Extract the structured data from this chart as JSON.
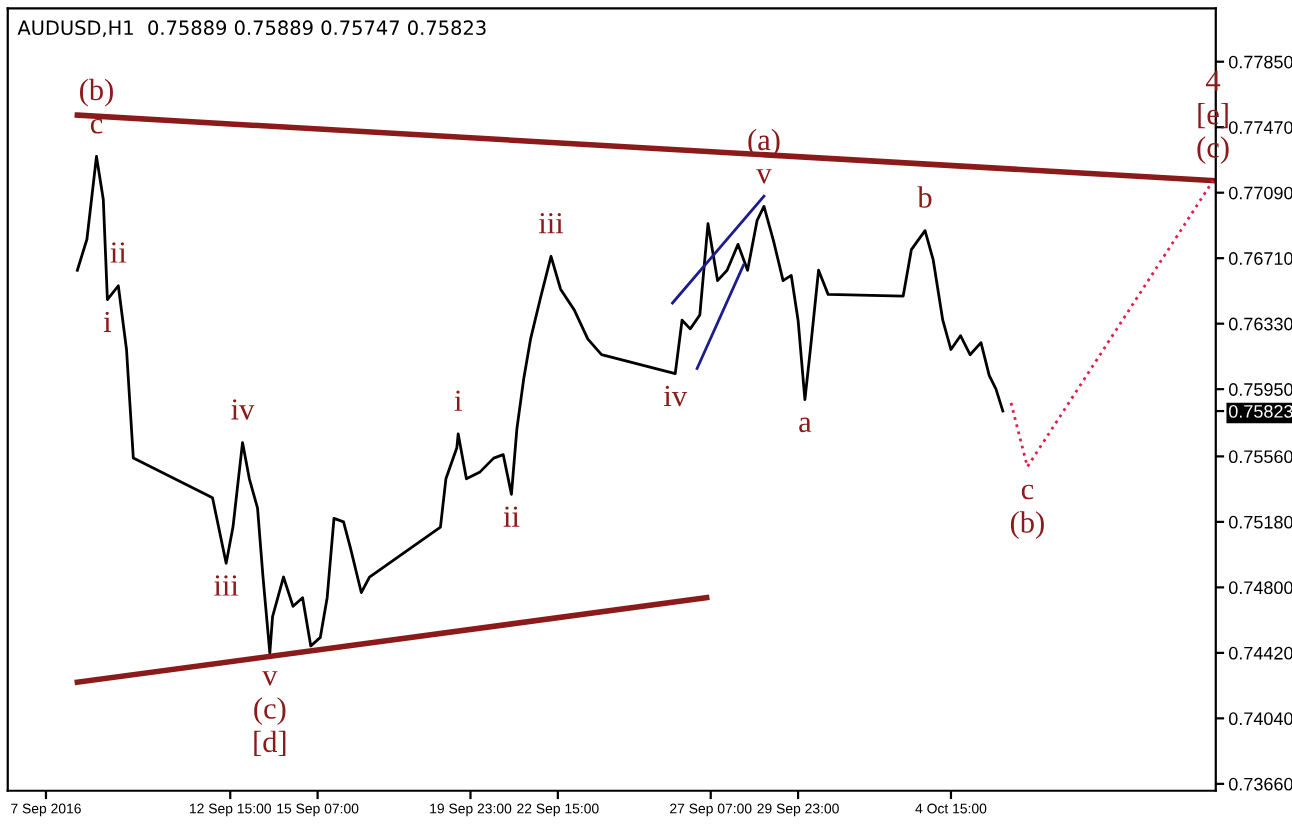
{
  "chart_data": {
    "type": "line",
    "title": "AUDUSD,H1  0.75889 0.75889 0.75747 0.75823",
    "xlim": [
      "2016-09-05T20:00",
      "2016-10-12T17:00"
    ],
    "ylim": [
      0.7362,
      0.7816
    ],
    "xticks": [
      {
        "value": "2016-09-07T00:00",
        "label": "7 Sep 2016"
      },
      {
        "value": "2016-09-12T15:00",
        "label": "12 Sep 15:00"
      },
      {
        "value": "2016-09-15T07:00",
        "label": "15 Sep 07:00"
      },
      {
        "value": "2016-09-19T23:00",
        "label": "19 Sep 23:00"
      },
      {
        "value": "2016-09-22T15:00",
        "label": "22 Sep 15:00"
      },
      {
        "value": "2016-09-27T07:00",
        "label": "27 Sep 07:00"
      },
      {
        "value": "2016-09-29T23:00",
        "label": "29 Sep 23:00"
      },
      {
        "value": "2016-10-04T15:00",
        "label": "4 Oct 15:00"
      }
    ],
    "yticks": [
      {
        "value": 0.7785,
        "label": "0.77850"
      },
      {
        "value": 0.7747,
        "label": "0.77470"
      },
      {
        "value": 0.7709,
        "label": "0.77090"
      },
      {
        "value": 0.7671,
        "label": "0.76710"
      },
      {
        "value": 0.7633,
        "label": "0.76330"
      },
      {
        "value": 0.7595,
        "label": "0.75950"
      },
      {
        "value": 0.75823,
        "label": "0.75823"
      },
      {
        "value": 0.7556,
        "label": "0.75560"
      },
      {
        "value": 0.7518,
        "label": "0.75180"
      },
      {
        "value": 0.748,
        "label": "0.74800"
      },
      {
        "value": 0.7442,
        "label": "0.74420"
      },
      {
        "value": 0.7404,
        "label": "0.74040"
      },
      {
        "value": 0.7366,
        "label": "0.73660"
      }
    ],
    "grid": false,
    "series": [
      {
        "color": "#000000",
        "x": [
          "2016-09-07T23:00",
          "2016-09-08T06:00",
          "2016-09-08T13:00",
          "2016-09-08T18:00",
          "2016-09-08T21:00",
          "2016-09-09T05:00",
          "2016-09-09T11:00",
          "2016-09-09T16:00",
          "2016-09-12T02:00",
          "2016-09-12T12:00",
          "2016-09-12T17:00",
          "2016-09-13T00:00",
          "2016-09-13T05:00",
          "2016-09-13T11:00",
          "2016-09-13T15:00",
          "2016-09-13T20:00",
          "2016-09-13T22:00",
          "2016-09-14T06:00",
          "2016-09-14T13:00",
          "2016-09-14T20:00",
          "2016-09-15T02:00",
          "2016-09-15T09:00",
          "2016-09-15T14:00",
          "2016-09-15T19:00",
          "2016-09-16T02:00",
          "2016-09-16T07:00",
          "2016-09-16T15:00",
          "2016-09-16T21:00",
          "2016-09-19T01:00",
          "2016-09-19T05:00",
          "2016-09-19T13:00",
          "2016-09-19T14:00",
          "2016-09-19T20:00",
          "2016-09-20T06:00",
          "2016-09-20T16:00",
          "2016-09-20T23:00",
          "2016-09-21T05:00",
          "2016-09-21T09:00",
          "2016-09-21T14:00",
          "2016-09-21T19:00",
          "2016-09-22T02:00",
          "2016-09-22T10:00",
          "2016-09-22T17:00",
          "2016-09-23T03:00",
          "2016-09-23T13:00",
          "2016-09-23T23:00",
          "2016-09-26T05:00",
          "2016-09-26T10:00",
          "2016-09-26T16:00",
          "2016-09-26T23:00",
          "2016-09-27T05:00",
          "2016-09-27T12:00",
          "2016-09-27T19:00",
          "2016-09-28T03:00",
          "2016-09-28T10:00",
          "2016-09-28T17:00",
          "2016-09-28T22:00",
          "2016-09-29T05:00",
          "2016-09-29T12:00",
          "2016-09-29T18:00",
          "2016-09-29T23:00",
          "2016-09-30T04:00",
          "2016-09-30T08:00",
          "2016-09-30T14:00",
          "2016-09-30T21:00",
          "2016-10-03T04:00",
          "2016-10-03T10:00",
          "2016-10-03T20:00",
          "2016-10-04T02:00",
          "2016-10-04T09:00",
          "2016-10-04T15:00",
          "2016-10-04T22:00",
          "2016-10-05T05:00",
          "2016-10-05T13:00",
          "2016-10-05T19:00",
          "2016-10-06T00:00",
          "2016-10-06T05:00"
        ],
        "values": [
          0.7664,
          0.7682,
          0.773,
          0.7705,
          0.7647,
          0.7655,
          0.7618,
          0.7555,
          0.7532,
          0.7494,
          0.7515,
          0.7564,
          0.7543,
          0.7526,
          0.7486,
          0.7442,
          0.7463,
          0.7486,
          0.7469,
          0.7474,
          0.7446,
          0.7451,
          0.7474,
          0.752,
          0.7518,
          0.7503,
          0.7477,
          0.7486,
          0.7515,
          0.7543,
          0.7561,
          0.7569,
          0.7543,
          0.7547,
          0.7555,
          0.7557,
          0.7534,
          0.7572,
          0.7601,
          0.7624,
          0.7647,
          0.7672,
          0.7653,
          0.7641,
          0.7624,
          0.7615,
          0.7604,
          0.7635,
          0.763,
          0.7638,
          0.7691,
          0.7658,
          0.7664,
          0.7679,
          0.7664,
          0.7693,
          0.7701,
          0.7681,
          0.7658,
          0.7661,
          0.7635,
          0.7589,
          0.7618,
          0.7664,
          0.765,
          0.7649,
          0.7676,
          0.7687,
          0.767,
          0.7635,
          0.7618,
          0.7626,
          0.7615,
          0.7622,
          0.7603,
          0.7595,
          0.75823
        ]
      },
      {
        "color": "#8b1a1a",
        "x": [
          "2016-09-07T23:00",
          "2016-10-12T15:00"
        ],
        "values": [
          0.7754,
          0.7716
        ]
      },
      {
        "color": "#8b1a1a",
        "x": [
          "2016-09-07T23:00",
          "2016-09-27T04:00"
        ],
        "values": [
          0.7425,
          0.7474
        ]
      },
      {
        "color": "#1c1c8c",
        "x": [
          "2016-09-26T03:00",
          "2016-09-28T22:00"
        ],
        "values": [
          0.7645,
          0.7707
        ]
      },
      {
        "color": "#1c1c8c",
        "x": [
          "2016-09-26T21:00",
          "2016-09-28T07:00"
        ],
        "values": [
          0.7607,
          0.7667
        ]
      },
      {
        "color": "#e0204a",
        "line_style": "dotted",
        "x": [
          "2016-10-06T11:00",
          "2016-10-06T23:00",
          "2016-10-12T15:00"
        ],
        "values": [
          0.7587,
          0.755,
          0.7716
        ]
      }
    ],
    "annotations": [
      {
        "text": "c",
        "x": "2016-09-08T13:00",
        "y": 0.773
      },
      {
        "text": "(b)",
        "x": "2016-09-08T13:00",
        "y": 0.773
      },
      {
        "text": "ii",
        "x": "2016-09-09T05:00",
        "y": 0.7655
      },
      {
        "text": "i",
        "x": "2016-09-08T21:00",
        "y": 0.7647
      },
      {
        "text": "iv",
        "x": "2016-09-13T00:00",
        "y": 0.7564
      },
      {
        "text": "iii",
        "x": "2016-09-12T12:00",
        "y": 0.7494
      },
      {
        "text": "v",
        "x": "2016-09-13T20:00",
        "y": 0.7442
      },
      {
        "text": "(c)",
        "x": "2016-09-13T20:00",
        "y": 0.7442
      },
      {
        "text": "[d]",
        "x": "2016-09-13T20:00",
        "y": 0.7442
      },
      {
        "text": "i",
        "x": "2016-09-19T14:00",
        "y": 0.7569
      },
      {
        "text": "ii",
        "x": "2016-09-21T05:00",
        "y": 0.7534
      },
      {
        "text": "iii",
        "x": "2016-09-22T10:00",
        "y": 0.7672
      },
      {
        "text": "iv",
        "x": "2016-09-26T05:00",
        "y": 0.7604
      },
      {
        "text": "v",
        "x": "2016-09-28T22:00",
        "y": 0.7701
      },
      {
        "text": "(a)",
        "x": "2016-09-28T22:00",
        "y": 0.7701
      },
      {
        "text": "a",
        "x": "2016-09-30T04:00",
        "y": 0.7589
      },
      {
        "text": "b",
        "x": "2016-10-03T20:00",
        "y": 0.7687
      },
      {
        "text": "c",
        "x": "2016-10-06T23:00",
        "y": 0.755
      },
      {
        "text": "(b)",
        "x": "2016-10-06T23:00",
        "y": 0.755
      },
      {
        "text": "(c)",
        "x": "2016-10-12T15:00",
        "y": 0.7716
      },
      {
        "text": "[e]",
        "x": "2016-10-12T15:00",
        "y": 0.7716
      },
      {
        "text": "4",
        "x": "2016-10-12T15:00",
        "y": 0.7716
      }
    ]
  }
}
